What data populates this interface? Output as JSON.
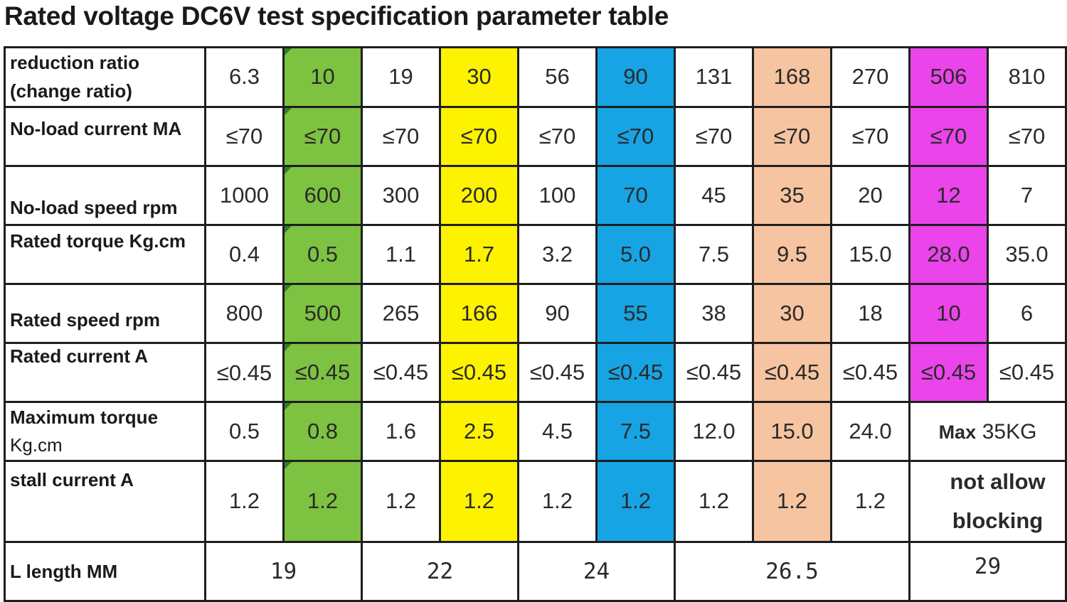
{
  "title": "Rated voltage DC6V test specification parameter table",
  "colors": {
    "green": "#7dc241",
    "yellow": "#fdf200",
    "blue": "#16a4e4",
    "peach": "#f6c4a0",
    "magenta": "#ea44ea"
  },
  "rows": [
    {
      "label_line1": "reduction ratio",
      "label_line2": "(change ratio)",
      "values": [
        "6.3",
        "10",
        "19",
        "30",
        "56",
        "90",
        "131",
        "168",
        "270",
        "506",
        "810"
      ]
    },
    {
      "label": "No-load current MA",
      "values": [
        "≤70",
        "≤70",
        "≤70",
        "≤70",
        "≤70",
        "≤70",
        "≤70",
        "≤70",
        "≤70",
        "≤70",
        "≤70"
      ]
    },
    {
      "label": "No-load speed rpm",
      "values": [
        "1000",
        "600",
        "300",
        "200",
        "100",
        "70",
        "45",
        "35",
        "20",
        "12",
        "7"
      ]
    },
    {
      "label": "Rated torque Kg.cm",
      "values": [
        "0.4",
        "0.5",
        "1.1",
        "1.7",
        "3.2",
        "5.0",
        "7.5",
        "9.5",
        "15.0",
        "28.0",
        "35.0"
      ]
    },
    {
      "label": "Rated speed rpm",
      "values": [
        "800",
        "500",
        "265",
        "166",
        "90",
        "55",
        "38",
        "30",
        "18",
        "10",
        "6"
      ]
    },
    {
      "label": "Rated current A",
      "values": [
        "≤0.45",
        "≤0.45",
        "≤0.45",
        "≤0.45",
        "≤0.45",
        "≤0.45",
        "≤0.45",
        "≤0.45",
        "≤0.45",
        "≤0.45",
        "≤0.45"
      ]
    },
    {
      "label_line1": "Maximum torque",
      "label_line2": "Kg.cm",
      "values": [
        "0.5",
        "0.8",
        "1.6",
        "2.5",
        "4.5",
        "7.5",
        "12.0",
        "15.0",
        "24.0"
      ],
      "merged_note": {
        "bold": "Max",
        "rest": "35KG"
      }
    },
    {
      "label": "stall current A",
      "values": [
        "1.2",
        "1.2",
        "1.2",
        "1.2",
        "1.2",
        "1.2",
        "1.2",
        "1.2",
        "1.2"
      ],
      "merged_note": {
        "line1": "not allow",
        "line2": "blocking"
      }
    },
    {
      "label": "L length MM",
      "lengths": [
        "19",
        "22",
        "24",
        "26.5",
        "29"
      ]
    }
  ]
}
